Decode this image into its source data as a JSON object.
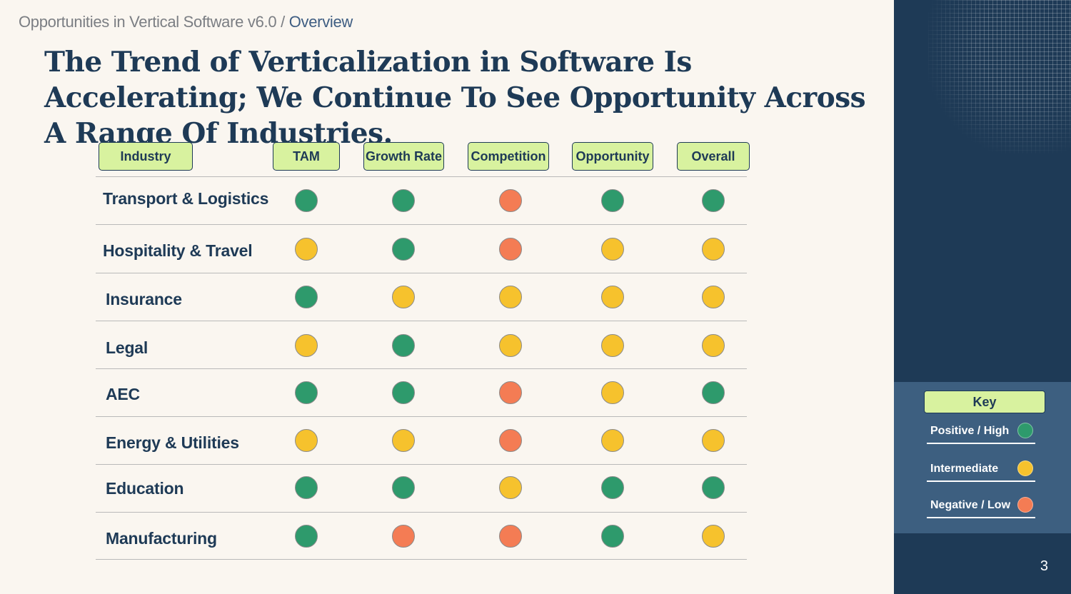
{
  "breadcrumb": {
    "root": "Opportunities in Vertical Software v6.0",
    "separator": "/",
    "current": "Overview"
  },
  "title": "The Trend of Verticalization in Software Is Accelerating; We Continue To See Opportunity Across A Range Of Industries.",
  "colors": {
    "positive": "#2e9a6c",
    "intermediate": "#f6c22d",
    "negative": "#f47c54",
    "header_fill": "#d8f29f",
    "navy": "#1e3a56"
  },
  "table": {
    "headers": [
      "Industry",
      "TAM",
      "Growth Rate",
      "Competition",
      "Opportunity",
      "Overall"
    ],
    "rows": [
      {
        "industry": "Transport & Logistics",
        "ratings": [
          "positive",
          "positive",
          "negative",
          "positive",
          "positive"
        ]
      },
      {
        "industry": "Hospitality & Travel",
        "ratings": [
          "intermediate",
          "positive",
          "negative",
          "intermediate",
          "intermediate"
        ]
      },
      {
        "industry": "Insurance",
        "ratings": [
          "positive",
          "intermediate",
          "intermediate",
          "intermediate",
          "intermediate"
        ]
      },
      {
        "industry": "Legal",
        "ratings": [
          "intermediate",
          "positive",
          "intermediate",
          "intermediate",
          "intermediate"
        ]
      },
      {
        "industry": "AEC",
        "ratings": [
          "positive",
          "positive",
          "negative",
          "intermediate",
          "positive"
        ]
      },
      {
        "industry": "Energy & Utilities",
        "ratings": [
          "intermediate",
          "intermediate",
          "negative",
          "intermediate",
          "intermediate"
        ]
      },
      {
        "industry": "Education",
        "ratings": [
          "positive",
          "positive",
          "intermediate",
          "positive",
          "positive"
        ]
      },
      {
        "industry": "Manufacturing",
        "ratings": [
          "positive",
          "negative",
          "negative",
          "positive",
          "intermediate"
        ]
      }
    ]
  },
  "key": {
    "title": "Key",
    "items": [
      {
        "label": "Positive / High",
        "rating": "positive"
      },
      {
        "label": "Intermediate",
        "rating": "intermediate"
      },
      {
        "label": "Negative / Low",
        "rating": "negative"
      }
    ]
  },
  "page_number": "3"
}
